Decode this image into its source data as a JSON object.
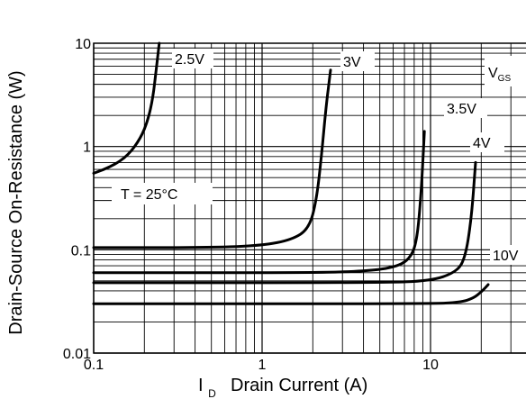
{
  "chart_data": {
    "type": "line",
    "title": "",
    "xlabel": "Drain Current (A)",
    "xlabel_symbol": "I",
    "xlabel_symbol_sub": "D",
    "ylabel": "Drain-Source On-Resistance (W)",
    "x_scale": "log",
    "y_scale": "log",
    "xlim": [
      0.1,
      30
    ],
    "ylim": [
      0.01,
      10
    ],
    "x_ticks": [
      {
        "value": 0.1,
        "label": "0.1"
      },
      {
        "value": 1,
        "label": "1"
      },
      {
        "value": 10,
        "label": "10"
      }
    ],
    "y_ticks": [
      {
        "value": 0.01,
        "label": "0.01"
      },
      {
        "value": 0.1,
        "label": "0.1"
      },
      {
        "value": 1,
        "label": "1"
      },
      {
        "value": 10,
        "label": "10"
      }
    ],
    "grid": true,
    "legend_title": {
      "main": "V",
      "sub": "GS"
    },
    "annotation": "T = 25°C",
    "series": [
      {
        "name": "2.5V",
        "x": [
          0.1,
          0.13,
          0.16,
          0.19,
          0.21,
          0.225,
          0.235,
          0.245
        ],
        "y": [
          0.55,
          0.65,
          0.82,
          1.2,
          1.8,
          3.0,
          5.5,
          10
        ]
      },
      {
        "name": "3V",
        "x": [
          0.1,
          0.5,
          1.0,
          1.5,
          1.9,
          2.1,
          2.25,
          2.4,
          2.55
        ],
        "y": [
          0.105,
          0.105,
          0.11,
          0.125,
          0.16,
          0.3,
          0.8,
          2.5,
          5.5
        ]
      },
      {
        "name": "3.5V",
        "x": [
          0.1,
          2,
          4,
          6,
          7.5,
          8.3,
          8.8,
          9.2
        ],
        "y": [
          0.06,
          0.06,
          0.062,
          0.067,
          0.08,
          0.12,
          0.35,
          1.4
        ]
      },
      {
        "name": "4V",
        "x": [
          0.1,
          5,
          10,
          14,
          16,
          17.5,
          18.5
        ],
        "y": [
          0.048,
          0.048,
          0.05,
          0.06,
          0.08,
          0.2,
          0.7
        ]
      },
      {
        "name": "10V",
        "x": [
          0.1,
          10,
          15,
          18,
          20,
          22
        ],
        "y": [
          0.03,
          0.03,
          0.031,
          0.034,
          0.039,
          0.046
        ]
      }
    ]
  }
}
